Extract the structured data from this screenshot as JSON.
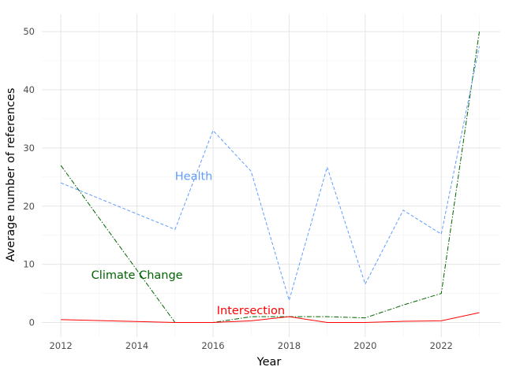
{
  "chart_data": {
    "type": "line",
    "title": "",
    "xlabel": "Year",
    "ylabel": "Average number of references",
    "xlim": [
      2011.5,
      2023.55
    ],
    "ylim": [
      -2.5,
      53
    ],
    "x_ticks": [
      2012,
      2014,
      2016,
      2018,
      2020,
      2022
    ],
    "x_tick_labels": [
      "2012",
      "2014",
      "2016",
      "2018",
      "2020",
      "2022"
    ],
    "y_ticks": [
      0,
      10,
      20,
      30,
      40,
      50
    ],
    "y_tick_labels": [
      "0",
      "10",
      "20",
      "30",
      "40",
      "50"
    ],
    "grid": true,
    "legend": "inline labels",
    "series": [
      {
        "name": "Health",
        "color": "#619CFF",
        "dash": "dashed",
        "x": [
          2012,
          2015,
          2016,
          2017,
          2018,
          2019,
          2020,
          2021,
          2022,
          2023
        ],
        "values": [
          24,
          16,
          33,
          26,
          3.8,
          26.7,
          6.6,
          19.3,
          15.2,
          47.5
        ],
        "label_at": [
          2015.0,
          25.2
        ]
      },
      {
        "name": "Climate Change",
        "color": "#006400",
        "dash": "dashdot",
        "x": [
          2012,
          2015,
          2016,
          2017,
          2018,
          2019,
          2020,
          2021,
          2022,
          2023
        ],
        "values": [
          27,
          0,
          0,
          1,
          1,
          1,
          0.8,
          3,
          5,
          50
        ],
        "label_at": [
          2012.8,
          8.2
        ]
      },
      {
        "name": "Intersection",
        "color": "#FF0000",
        "dash": "solid",
        "x": [
          2012,
          2015,
          2016,
          2017,
          2018,
          2019,
          2020,
          2021,
          2022,
          2023
        ],
        "values": [
          0.5,
          0,
          0,
          0.3,
          1,
          0,
          0,
          0.2,
          0.3,
          1.7
        ],
        "label_at": [
          2016.1,
          2.1
        ]
      }
    ]
  }
}
